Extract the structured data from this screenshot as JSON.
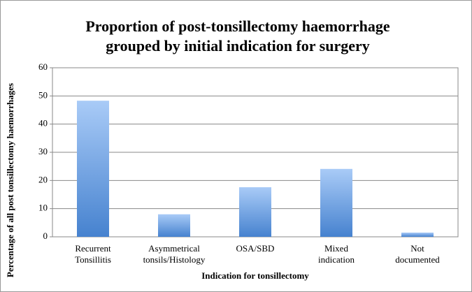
{
  "chart_data": {
    "type": "bar",
    "title": "Proportion of post-tonsillectomy haemorrhage",
    "subtitle": "grouped by initial indication for surgery",
    "x_label": "Indication for tonsillectomy",
    "y_label": "Percentage of all post tonsillectomy haemorrhages",
    "categories": [
      "Recurrent Tonsillitis",
      "Asymmetrical tonsils/Histology",
      "OSA/SBD",
      "Mixed indication",
      "Not documented"
    ],
    "values": [
      48.3,
      8,
      17.6,
      24.1,
      1.5
    ],
    "color": "#5b95dc",
    "ylim": [
      0,
      60
    ],
    "yticks": [
      0,
      10,
      20,
      30,
      40,
      50,
      60
    ],
    "grid": true
  }
}
